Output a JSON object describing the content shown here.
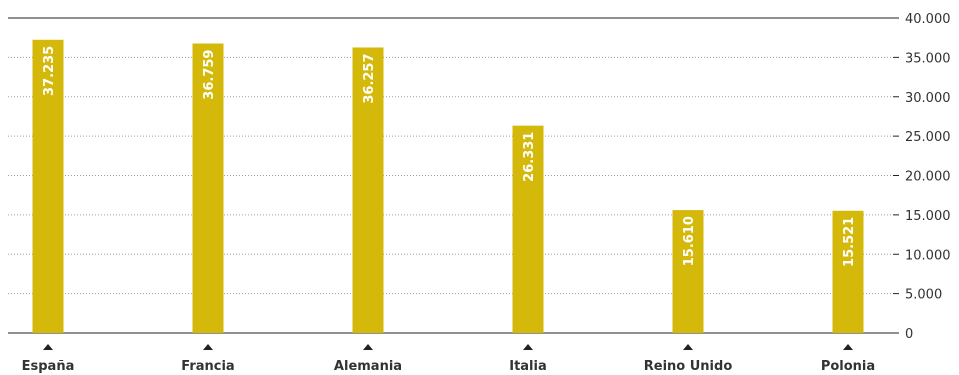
{
  "colors": {
    "bar": "#D4B90B",
    "axis": "#222222",
    "grid": "#9a9a9a",
    "text": "#333333"
  },
  "chart_data": {
    "type": "bar",
    "categories": [
      "España",
      "Francia",
      "Alemania",
      "Italia",
      "Reino Unido",
      "Polonia"
    ],
    "values": [
      37235,
      36759,
      36257,
      26331,
      15610,
      15521
    ],
    "data_labels": [
      "37.235",
      "36.759",
      "36.257",
      "26.331",
      "15.610",
      "15.521"
    ],
    "y_ticks": [
      0,
      5000,
      10000,
      15000,
      20000,
      25000,
      30000,
      35000,
      40000
    ],
    "y_tick_labels": [
      "0",
      "5.000",
      "10.000",
      "15.000",
      "20.000",
      "25.000",
      "30.000",
      "35.000",
      "40.000"
    ],
    "ylim": [
      0,
      40000
    ],
    "y_axis_side": "right",
    "grid": "horizontal-dotted",
    "legend": "none",
    "title": "",
    "xlabel": "",
    "ylabel": ""
  }
}
